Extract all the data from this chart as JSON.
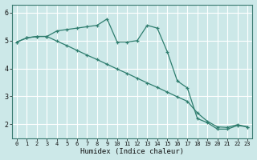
{
  "xlabel": "Humidex (Indice chaleur)",
  "ylabel": "",
  "bg_color": "#cce8e8",
  "grid_color": "#ffffff",
  "line_color": "#2e7d6e",
  "xlim": [
    -0.5,
    23.5
  ],
  "ylim": [
    1.5,
    6.3
  ],
  "yticks": [
    2,
    3,
    4,
    5,
    6
  ],
  "xticks": [
    0,
    1,
    2,
    3,
    4,
    5,
    6,
    7,
    8,
    9,
    10,
    11,
    12,
    13,
    14,
    15,
    16,
    17,
    18,
    19,
    20,
    21,
    22,
    23
  ],
  "line1_x": [
    0,
    1,
    2,
    3,
    4,
    5,
    6,
    7,
    8,
    9,
    10,
    11,
    12,
    13,
    14,
    15,
    16,
    17,
    18,
    19,
    20,
    21,
    22,
    23
  ],
  "line1_y": [
    4.95,
    5.1,
    5.15,
    5.15,
    5.35,
    5.4,
    5.45,
    5.5,
    5.55,
    5.78,
    4.95,
    4.95,
    5.0,
    5.55,
    5.45,
    4.6,
    3.55,
    3.3,
    2.2,
    2.05,
    1.82,
    1.82,
    1.95,
    1.9
  ],
  "line2_x": [
    0,
    1,
    2,
    3,
    4,
    5,
    6,
    7,
    8,
    9,
    10,
    11,
    12,
    13,
    14,
    15,
    16,
    17,
    18,
    19,
    20,
    21,
    22,
    23
  ],
  "line2_y": [
    4.95,
    5.1,
    5.15,
    5.15,
    4.98,
    4.82,
    4.65,
    4.48,
    4.32,
    4.15,
    3.98,
    3.82,
    3.65,
    3.48,
    3.32,
    3.15,
    2.98,
    2.82,
    2.4,
    2.1,
    1.9,
    1.88,
    1.98,
    1.9
  ]
}
